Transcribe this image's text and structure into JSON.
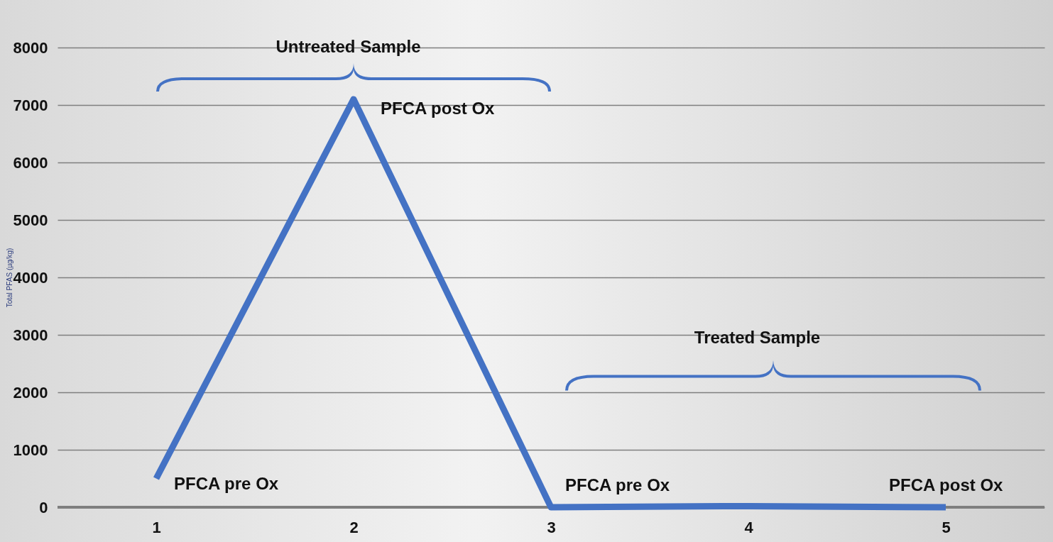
{
  "chart_data": {
    "type": "line",
    "ylabel": "Total PFAS (µg/kg)",
    "categories": [
      "1",
      "2",
      "3",
      "4",
      "5"
    ],
    "series": [
      {
        "color": "#4472c4",
        "values": [
          500,
          7100,
          0,
          20,
          0
        ]
      }
    ],
    "ylim": [
      0,
      8000
    ],
    "yticks": [
      0,
      1000,
      2000,
      3000,
      4000,
      5000,
      6000,
      7000,
      8000
    ],
    "grid": "y",
    "marker": "none",
    "line_style": "solid",
    "annotations": [
      "Untreated Sample",
      {
        "text": "PFCA post Ox",
        "x": "2",
        "y": 7100
      },
      {
        "text": "PFCA pre Ox",
        "x": "1",
        "y": 500
      },
      {
        "text": "PFCA pre Ox",
        "x": "3",
        "y": 0
      },
      {
        "text": "PFCA post Ox",
        "x": "5",
        "y": 0
      },
      "Treated Sample"
    ]
  }
}
